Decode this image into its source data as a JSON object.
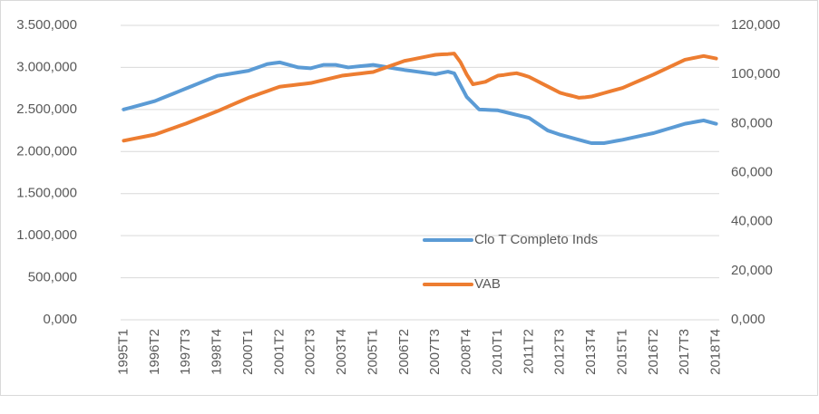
{
  "chart_data": {
    "type": "line",
    "categories": [
      "1995T1",
      null,
      null,
      null,
      null,
      "1996T2",
      null,
      null,
      null,
      null,
      "1997T3",
      null,
      null,
      null,
      null,
      "1998T4",
      null,
      null,
      null,
      null,
      "2000T1",
      null,
      null,
      null,
      null,
      "2001T2",
      null,
      null,
      null,
      null,
      "2002T3",
      null,
      null,
      null,
      null,
      "2003T4",
      null,
      null,
      null,
      null,
      "2005T1",
      null,
      null,
      null,
      null,
      "2006T2",
      null,
      null,
      null,
      null,
      "2007T3",
      null,
      null,
      null,
      null,
      "2008T4",
      null,
      null,
      null,
      null,
      "2010T1",
      null,
      null,
      null,
      null,
      "2011T2",
      null,
      null,
      null,
      null,
      "2012T3",
      null,
      null,
      null,
      null,
      "2013T4",
      null,
      null,
      null,
      null,
      "2015T1",
      null,
      null,
      null,
      null,
      "2016T2",
      null,
      null,
      null,
      null,
      "2017T3",
      null,
      null,
      null,
      null,
      "2018T4"
    ],
    "series": [
      {
        "name": "Clo T Completo Inds",
        "color": "#5b9bd5",
        "axis": "y",
        "values": [
          2500000,
          2520000,
          2540000,
          2560000,
          2580000,
          2600000,
          2630000,
          2660000,
          2690000,
          2720000,
          2750000,
          2780000,
          2810000,
          2840000,
          2870000,
          2900000,
          2912000,
          2924000,
          2936000,
          2948000,
          2960000,
          2987000,
          3013000,
          3040000,
          3050000,
          3060000,
          3040000,
          3020000,
          3000000,
          2995000,
          2990000,
          3010000,
          3030000,
          3030000,
          3030000,
          3015000,
          3000000,
          3008000,
          3015000,
          3022000,
          3030000,
          3018000,
          3006000,
          2994000,
          2982000,
          2970000,
          2960000,
          2950000,
          2940000,
          2930000,
          2920000,
          2935000,
          2950000,
          2930000,
          2790000,
          2650000,
          2575000,
          2500000,
          2497000,
          2493000,
          2490000,
          2472000,
          2454000,
          2436000,
          2418000,
          2400000,
          2350000,
          2300000,
          2250000,
          2225000,
          2200000,
          2180000,
          2160000,
          2140000,
          2120000,
          2100000,
          2100000,
          2100000,
          2113000,
          2127000,
          2140000,
          2156000,
          2172000,
          2188000,
          2204000,
          2220000,
          2242000,
          2264000,
          2286000,
          2308000,
          2330000,
          2343000,
          2357000,
          2370000,
          2350000,
          2330000
        ]
      },
      {
        "name": "VAB",
        "color": "#ed7d31",
        "axis": "y2",
        "values": [
          73,
          73.5,
          74,
          74.5,
          75,
          75.5,
          76.4,
          77.3,
          78.2,
          79.1,
          80,
          81,
          82,
          83,
          84,
          85,
          86.1,
          87.2,
          88.3,
          89.4,
          90.5,
          91.4,
          92.3,
          93.2,
          94.1,
          95,
          95.3,
          95.6,
          95.9,
          96.2,
          96.5,
          97.1,
          97.7,
          98.3,
          98.9,
          99.5,
          99.8,
          100.1,
          100.4,
          100.7,
          101,
          101.9,
          102.8,
          103.7,
          104.6,
          105.5,
          106,
          106.5,
          107,
          107.5,
          108,
          108.2,
          108.3,
          108.5,
          105,
          100,
          96,
          96.5,
          97,
          98.3,
          99.5,
          99.8,
          100.2,
          100.5,
          99.8,
          99,
          97.7,
          96.4,
          95.1,
          93.8,
          92.5,
          91.8,
          91.2,
          90.5,
          90.7,
          91,
          91.7,
          92.4,
          93.1,
          93.8,
          94.5,
          95.6,
          96.7,
          97.8,
          98.9,
          100,
          101.2,
          102.4,
          103.6,
          104.8,
          106,
          106.5,
          107,
          107.5,
          107,
          106.5
        ]
      }
    ],
    "ylim": [
      0,
      3500000
    ],
    "yticks": [
      {
        "value": 0,
        "label": "0,000"
      },
      {
        "value": 500000,
        "label": "500,000"
      },
      {
        "value": 1000000,
        "label": "1.000,000"
      },
      {
        "value": 1500000,
        "label": "1.500,000"
      },
      {
        "value": 2000000,
        "label": "2.000,000"
      },
      {
        "value": 2500000,
        "label": "2.500,000"
      },
      {
        "value": 3000000,
        "label": "3.000,000"
      },
      {
        "value": 3500000,
        "label": "3.500,000"
      }
    ],
    "y2lim": [
      0,
      120
    ],
    "y2ticks": [
      {
        "value": 0,
        "label": "0,000"
      },
      {
        "value": 20,
        "label": "20,000"
      },
      {
        "value": 40,
        "label": "40,000"
      },
      {
        "value": 60,
        "label": "60,000"
      },
      {
        "value": 80,
        "label": "80,000"
      },
      {
        "value": 100,
        "label": "100,000"
      },
      {
        "value": 120,
        "label": "120,000"
      }
    ],
    "grid": true,
    "legend_position": "center"
  }
}
